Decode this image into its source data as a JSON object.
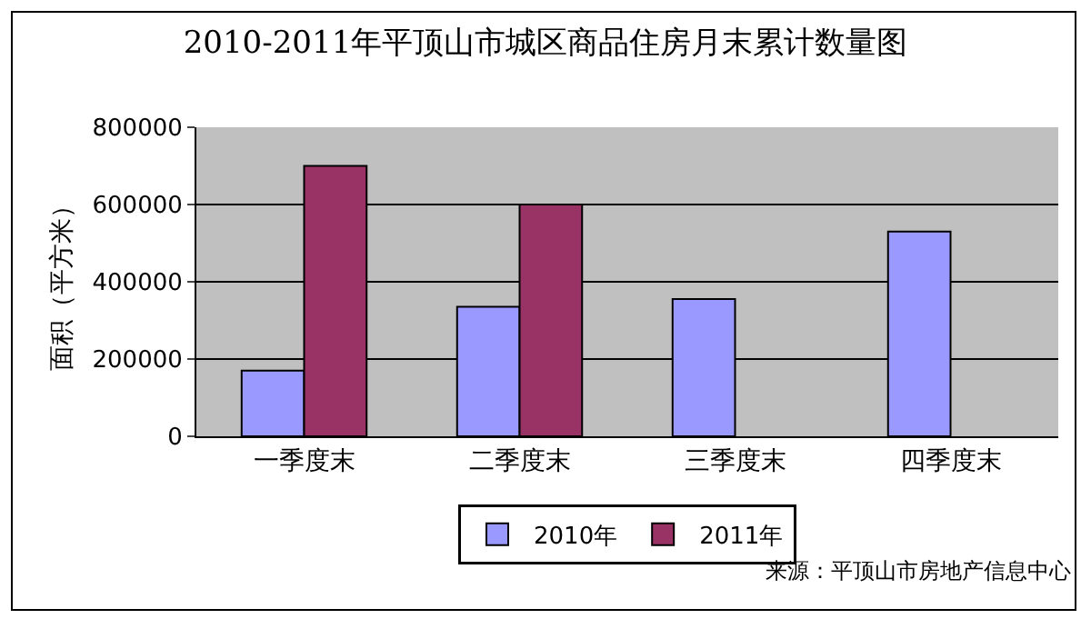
{
  "chart_data": {
    "type": "bar",
    "title": "2010-2011年平顶山市城区商品住房月末累计数量图",
    "ylabel": "面积（平方米）",
    "categories": [
      "一季度末",
      "二季度末",
      "三季度末",
      "四季度末"
    ],
    "series": [
      {
        "name": "2010年",
        "color": "#9999ff",
        "values": [
          170000,
          335000,
          355000,
          530000
        ]
      },
      {
        "name": "2011年",
        "color": "#993366",
        "values": [
          700000,
          600000,
          null,
          null
        ]
      }
    ],
    "ylim": [
      0,
      800000
    ],
    "yticks": [
      0,
      200000,
      400000,
      600000,
      800000
    ],
    "grid": "y",
    "legend": "bottom",
    "annotations": [
      "来源：平顶山市房地产信息中心"
    ]
  }
}
